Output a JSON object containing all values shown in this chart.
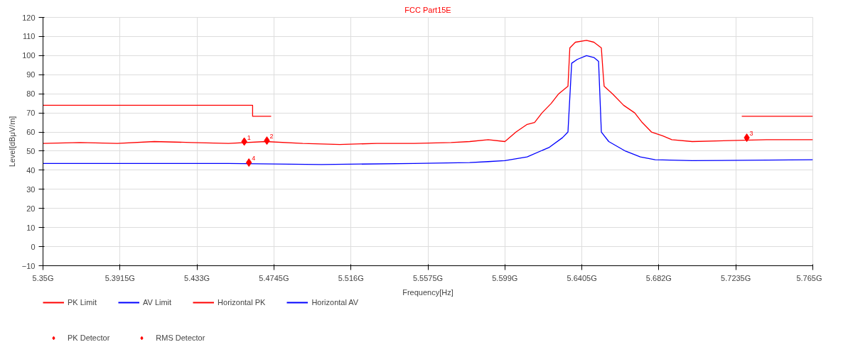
{
  "chart_data": {
    "type": "line",
    "title": "FCC Part15E",
    "xlabel": "Frequency[Hz]",
    "ylabel": "Level[dBμV/m]",
    "xlim": [
      5.35,
      5.765
    ],
    "ylim": [
      -10,
      120
    ],
    "xticks": [
      {
        "value": 5.35,
        "label": "5.35G"
      },
      {
        "value": 5.3915,
        "label": "5.3915G"
      },
      {
        "value": 5.433,
        "label": "5.433G"
      },
      {
        "value": 5.4745,
        "label": "5.4745G"
      },
      {
        "value": 5.516,
        "label": "5.516G"
      },
      {
        "value": 5.5575,
        "label": "5.5575G"
      },
      {
        "value": 5.599,
        "label": "5.599G"
      },
      {
        "value": 5.6405,
        "label": "5.6405G"
      },
      {
        "value": 5.682,
        "label": "5.682G"
      },
      {
        "value": 5.7235,
        "label": "5.7235G"
      },
      {
        "value": 5.765,
        "label": "5.765G"
      }
    ],
    "yticks": [
      -10,
      0,
      10,
      20,
      30,
      40,
      50,
      60,
      70,
      80,
      90,
      100,
      110,
      120
    ],
    "grid": true,
    "legend": "bottom",
    "series": [
      {
        "name": "PK Limit",
        "color": "#ff0000",
        "x": [
          5.35,
          5.463,
          5.463,
          5.473,
          5.5,
          5.7267,
          5.765
        ],
        "values": [
          74,
          74,
          68.2,
          68.2,
          null,
          68.2,
          68.2
        ]
      },
      {
        "name": "AV Limit",
        "color": "#0000ff"
      },
      {
        "name": "Horizontal PK",
        "color": "#ff0000",
        "x": [
          5.35,
          5.37,
          5.39,
          5.41,
          5.43,
          5.45,
          5.47,
          5.49,
          5.51,
          5.53,
          5.55,
          5.57,
          5.58,
          5.59,
          5.599,
          5.605,
          5.611,
          5.615,
          5.619,
          5.624,
          5.628,
          5.633,
          5.634,
          5.637,
          5.643,
          5.647,
          5.651,
          5.652,
          5.6525,
          5.657,
          5.663,
          5.669,
          5.673,
          5.678,
          5.684,
          5.689,
          5.7,
          5.72,
          5.74,
          5.765
        ],
        "values": [
          54,
          54.5,
          54,
          55,
          54.5,
          54,
          55,
          54,
          53.5,
          54,
          54,
          54.5,
          55,
          56,
          55,
          60,
          64,
          65,
          70,
          75,
          80,
          84,
          104,
          107,
          108,
          107,
          104,
          90,
          84,
          80,
          74,
          70,
          65,
          60,
          58,
          56,
          55,
          55.5,
          56,
          56
        ]
      },
      {
        "name": "Horizontal AV",
        "color": "#0000ff",
        "x": [
          5.35,
          5.4,
          5.45,
          5.5,
          5.55,
          5.58,
          5.59,
          5.599,
          5.611,
          5.623,
          5.63,
          5.633,
          5.635,
          5.638,
          5.643,
          5.647,
          5.6495,
          5.651,
          5.655,
          5.664,
          5.672,
          5.68,
          5.7,
          5.765
        ],
        "values": [
          43.5,
          43.5,
          43.5,
          43,
          43.5,
          44,
          44.5,
          45,
          47,
          52,
          57,
          60,
          96,
          98,
          100,
          99,
          97,
          60,
          55,
          50,
          47,
          45.5,
          45,
          45.5
        ]
      },
      {
        "name": "PK Detector",
        "type": "scatter",
        "marker": "diamond",
        "color": "#ff0000",
        "x": [
          5.4585,
          5.4707,
          5.7294
        ],
        "values": [
          55,
          55.5,
          57
        ]
      },
      {
        "name": "RMS Detector",
        "type": "scatter",
        "marker": "diamond",
        "color": "#ff0000",
        "x": [
          5.461
        ],
        "values": [
          44
        ]
      }
    ],
    "annotations": [
      {
        "text": "1",
        "x": 5.4585,
        "y": 55
      },
      {
        "text": "2",
        "x": 5.4707,
        "y": 55.5
      },
      {
        "text": "3",
        "x": 5.7294,
        "y": 57
      },
      {
        "text": "4",
        "x": 5.461,
        "y": 44
      }
    ]
  }
}
